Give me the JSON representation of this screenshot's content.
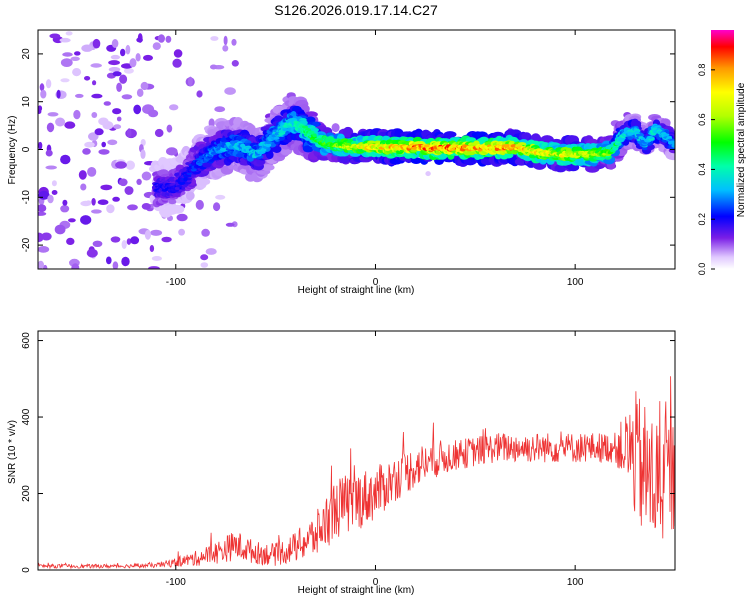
{
  "figure": {
    "title": "S126.2026.019.17.14.C27"
  },
  "chart_data": [
    {
      "type": "heatmap",
      "xlabel": "Height of straight line (km)",
      "ylabel": "Frequency (Hz)",
      "xlim": [
        -169,
        150
      ],
      "ylim": [
        -25,
        25
      ],
      "xticks": [
        -100,
        0,
        100
      ],
      "yticks": [
        -20,
        -10,
        0,
        10,
        20
      ],
      "colorbar": {
        "label": "Normalized spectral amplitude",
        "range": [
          0.0,
          0.96
        ],
        "ticks": [
          0.0,
          0.2,
          0.4,
          0.6,
          0.8
        ]
      },
      "ridge": {
        "x": [
          -100,
          -90,
          -80,
          -70,
          -60,
          -50,
          -42,
          -35,
          -28,
          -20,
          -10,
          0,
          10,
          20,
          30,
          40,
          50,
          60,
          70,
          80,
          90,
          100,
          110,
          118,
          124,
          130,
          135,
          140,
          145,
          150
        ],
        "y": [
          -8,
          -3,
          0,
          1,
          -1,
          3,
          6,
          4,
          1.5,
          1,
          0.5,
          0.5,
          0.5,
          0.5,
          0.3,
          0.3,
          0.3,
          0.3,
          0.5,
          -0.5,
          -1,
          -1,
          -1,
          -0.5,
          3,
          4,
          1,
          4,
          3,
          1
        ],
        "amplitude": [
          0.2,
          0.25,
          0.3,
          0.35,
          0.35,
          0.35,
          0.4,
          0.45,
          0.55,
          0.6,
          0.7,
          0.75,
          0.8,
          0.85,
          0.85,
          0.85,
          0.85,
          0.85,
          0.8,
          0.75,
          0.7,
          0.7,
          0.65,
          0.55,
          0.4,
          0.35,
          0.35,
          0.4,
          0.35,
          0.3
        ]
      }
    },
    {
      "type": "line",
      "xlabel": "Height of straight line (km)",
      "ylabel": "SNR (10 * v/v)",
      "xlim": [
        -169,
        150
      ],
      "ylim": [
        0,
        625
      ],
      "xticks": [
        -100,
        0,
        100
      ],
      "yticks": [
        0,
        200,
        400,
        600
      ],
      "series": [
        {
          "color": "#ee3333",
          "envelope_x": [
            -169,
            -130,
            -110,
            -100,
            -90,
            -80,
            -70,
            -60,
            -50,
            -40,
            -30,
            -20,
            -10,
            0,
            10,
            20,
            30,
            40,
            50,
            60,
            70,
            80,
            90,
            100,
            110,
            120,
            125,
            130,
            135,
            140,
            145,
            150
          ],
          "envelope_y": [
            10,
            10,
            12,
            20,
            30,
            45,
            65,
            45,
            40,
            60,
            90,
            160,
            180,
            200,
            240,
            270,
            290,
            300,
            310,
            320,
            320,
            320,
            320,
            320,
            320,
            320,
            320,
            300,
            250,
            230,
            230,
            250
          ],
          "spread": [
            5,
            5,
            6,
            12,
            20,
            30,
            40,
            30,
            30,
            40,
            60,
            80,
            80,
            70,
            60,
            55,
            50,
            40,
            40,
            40,
            40,
            40,
            40,
            40,
            40,
            40,
            90,
            170,
            190,
            180,
            170,
            150
          ]
        }
      ]
    }
  ]
}
